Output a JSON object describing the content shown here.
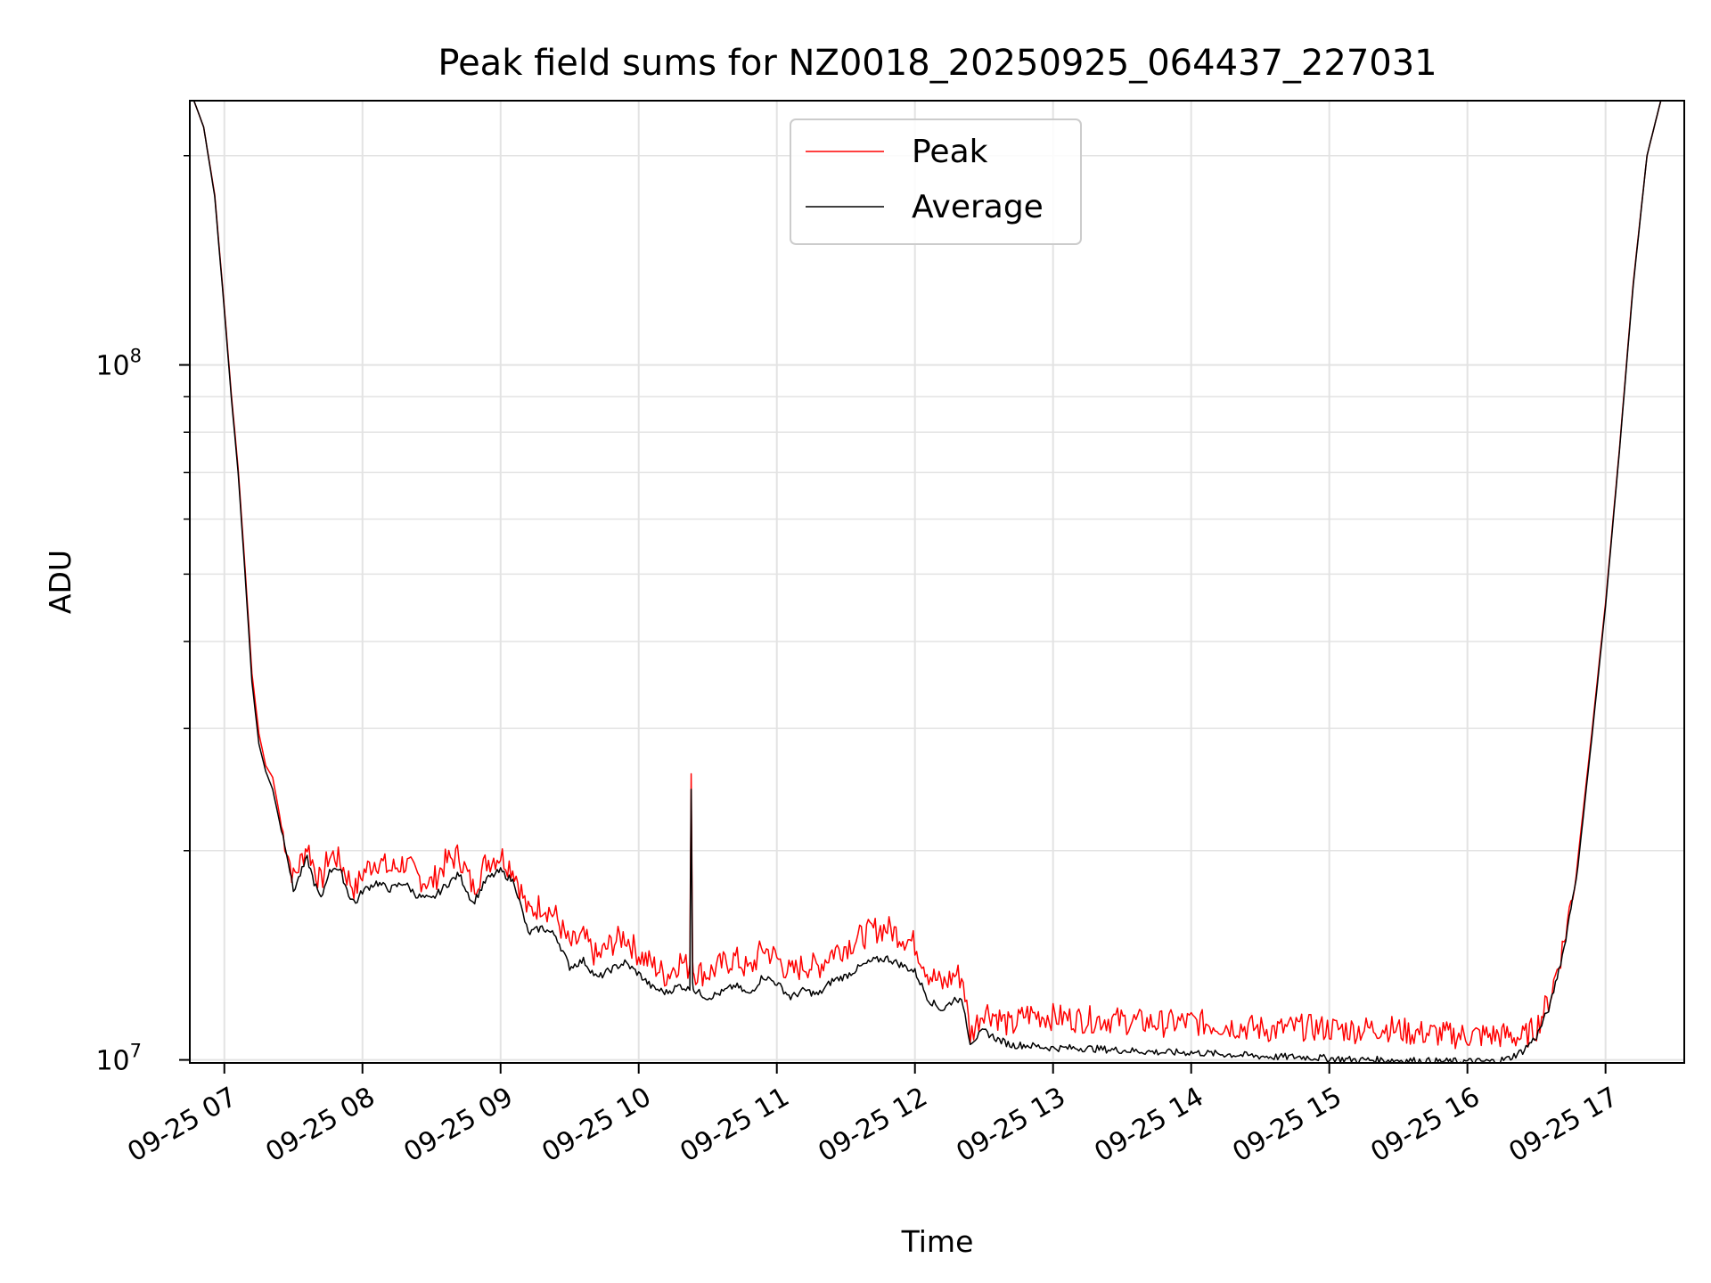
{
  "chart_data": {
    "type": "line",
    "title": "Peak field sums for NZ0018_20250925_064437_227031",
    "xlabel": "Time",
    "ylabel": "ADU",
    "yscale": "log",
    "ylim": [
      9900000,
      240000000
    ],
    "xlim_hours": [
      6.75,
      17.57
    ],
    "grid": true,
    "grid_minor": true,
    "y_major_ticks": [
      {
        "value": 10000000,
        "base": "10",
        "exp": "7"
      },
      {
        "value": 100000000,
        "base": "10",
        "exp": "8"
      }
    ],
    "x_ticks": [
      {
        "hour": 7,
        "label": "09-25 07"
      },
      {
        "hour": 8,
        "label": "09-25 08"
      },
      {
        "hour": 9,
        "label": "09-25 09"
      },
      {
        "hour": 10,
        "label": "09-25 10"
      },
      {
        "hour": 11,
        "label": "09-25 11"
      },
      {
        "hour": 12,
        "label": "09-25 12"
      },
      {
        "hour": 13,
        "label": "09-25 13"
      },
      {
        "hour": 14,
        "label": "09-25 14"
      },
      {
        "hour": 15,
        "label": "09-25 15"
      },
      {
        "hour": 16,
        "label": "09-25 16"
      },
      {
        "hour": 17,
        "label": "09-25 17"
      }
    ],
    "legend": {
      "placement": "top-center",
      "entries": [
        {
          "name": "Peak",
          "color": "#ff0000"
        },
        {
          "name": "Average",
          "color": "#000000"
        }
      ]
    },
    "series": [
      {
        "name": "Average",
        "color": "#000000",
        "x_hours": [
          6.78,
          6.85,
          6.93,
          7.0,
          7.05,
          7.1,
          7.15,
          7.2,
          7.25,
          7.3,
          7.35,
          7.4,
          7.45,
          7.5,
          7.55,
          7.6,
          7.65,
          7.7,
          7.75,
          7.8,
          7.85,
          7.9,
          7.95,
          8.0,
          8.1,
          8.2,
          8.3,
          8.4,
          8.5,
          8.6,
          8.7,
          8.8,
          8.9,
          9.0,
          9.1,
          9.2,
          9.3,
          9.4,
          9.5,
          9.6,
          9.7,
          9.8,
          9.9,
          10.0,
          10.1,
          10.2,
          10.3,
          10.37,
          10.38,
          10.39,
          10.4,
          10.5,
          10.6,
          10.7,
          10.8,
          10.9,
          11.0,
          11.1,
          11.2,
          11.3,
          11.4,
          11.5,
          11.6,
          11.7,
          11.8,
          11.9,
          12.0,
          12.1,
          12.2,
          12.3,
          12.35,
          12.4,
          12.5,
          12.6,
          12.7,
          12.8,
          13.0,
          13.2,
          13.4,
          13.6,
          13.8,
          14.0,
          14.2,
          14.4,
          14.6,
          14.8,
          15.0,
          15.2,
          15.4,
          15.6,
          15.8,
          15.9,
          16.0,
          16.1,
          16.2,
          16.3,
          16.4,
          16.5,
          16.6,
          16.7,
          16.8,
          16.9,
          17.0,
          17.1,
          17.2,
          17.3,
          17.4,
          17.5
        ],
        "values": [
          240000000,
          220000000,
          175000000,
          120000000,
          90000000,
          70000000,
          50000000,
          35000000,
          28500000,
          26000000,
          24500000,
          22000000,
          20000000,
          17500000,
          18500000,
          19500000,
          18000000,
          17000000,
          18500000,
          19000000,
          18500000,
          17300000,
          16800000,
          17500000,
          18000000,
          17600000,
          18000000,
          17200000,
          17000000,
          17800000,
          18500000,
          16800000,
          18200000,
          18700000,
          18000000,
          15200000,
          15500000,
          15100000,
          13600000,
          13900000,
          13100000,
          13500000,
          13800000,
          13300000,
          12700000,
          12500000,
          12800000,
          12600000,
          24500000,
          13000000,
          12600000,
          12300000,
          12500000,
          12800000,
          12400000,
          13200000,
          12900000,
          12300000,
          12600000,
          12400000,
          13000000,
          13200000,
          13600000,
          13900000,
          14000000,
          13700000,
          13400000,
          12200000,
          11800000,
          12300000,
          12000000,
          10600000,
          11000000,
          10700000,
          10500000,
          10500000,
          10400000,
          10400000,
          10350000,
          10300000,
          10250000,
          10250000,
          10200000,
          10150000,
          10100000,
          10100000,
          10050000,
          10000000,
          10000000,
          9980000,
          9950000,
          9950000,
          9950000,
          9950000,
          9950000,
          10050000,
          10300000,
          10800000,
          12000000,
          14500000,
          19000000,
          29000000,
          45000000,
          75000000,
          130000000,
          200000000,
          240000000,
          240000000
        ]
      },
      {
        "name": "Peak",
        "color": "#ff0000",
        "x_hours": [
          6.78,
          6.85,
          6.93,
          7.0,
          7.05,
          7.1,
          7.15,
          7.2,
          7.25,
          7.3,
          7.35,
          7.4,
          7.45,
          7.5,
          7.55,
          7.6,
          7.65,
          7.7,
          7.75,
          7.8,
          7.85,
          7.9,
          7.95,
          8.0,
          8.1,
          8.2,
          8.3,
          8.4,
          8.5,
          8.6,
          8.7,
          8.8,
          8.9,
          9.0,
          9.1,
          9.2,
          9.3,
          9.4,
          9.5,
          9.6,
          9.7,
          9.8,
          9.9,
          10.0,
          10.1,
          10.2,
          10.3,
          10.37,
          10.38,
          10.39,
          10.4,
          10.5,
          10.6,
          10.7,
          10.8,
          10.9,
          11.0,
          11.1,
          11.2,
          11.3,
          11.4,
          11.5,
          11.6,
          11.7,
          11.8,
          11.9,
          12.0,
          12.1,
          12.2,
          12.3,
          12.35,
          12.4,
          12.5,
          12.6,
          12.7,
          12.8,
          13.0,
          13.2,
          13.4,
          13.6,
          13.8,
          14.0,
          14.2,
          14.4,
          14.6,
          14.8,
          15.0,
          15.2,
          15.4,
          15.6,
          15.8,
          15.9,
          16.0,
          16.1,
          16.2,
          16.3,
          16.4,
          16.5,
          16.6,
          16.7,
          16.8,
          16.9,
          17.0,
          17.1,
          17.2,
          17.3,
          17.4,
          17.5
        ],
        "values": [
          240000000,
          220000000,
          176000000,
          121000000,
          91000000,
          71000000,
          51000000,
          36000000,
          29500000,
          26500000,
          25500000,
          22500000,
          20500000,
          18500000,
          19500000,
          20700000,
          19200000,
          18200000,
          19800000,
          20000000,
          19300000,
          18500000,
          17800000,
          18800000,
          19700000,
          19000000,
          19500000,
          18600000,
          18200000,
          19500000,
          20000000,
          17900000,
          19600000,
          20000000,
          19000000,
          16500000,
          17000000,
          16300000,
          14800000,
          15200000,
          14200000,
          14900000,
          15300000,
          14400000,
          13900000,
          13400000,
          14100000,
          13700000,
          25800000,
          14200000,
          13600000,
          13500000,
          13900000,
          14200000,
          13600000,
          14700000,
          14200000,
          13500000,
          13900000,
          13800000,
          14500000,
          14800000,
          15200000,
          15600000,
          15700000,
          15300000,
          14900000,
          13500000,
          13000000,
          13500000,
          13200000,
          11000000,
          12000000,
          11700000,
          11300000,
          11800000,
          11700000,
          11600000,
          11600000,
          11500000,
          11450000,
          11500000,
          11400000,
          11300000,
          11200000,
          11300000,
          11250000,
          11200000,
          11300000,
          11100000,
          11050000,
          11000000,
          11000000,
          11000000,
          11000000,
          11000000,
          10900000,
          11300000,
          12500000,
          15000000,
          19500000,
          29500000,
          45500000,
          75500000,
          131000000,
          200000000,
          240000000,
          240000000
        ]
      }
    ]
  }
}
